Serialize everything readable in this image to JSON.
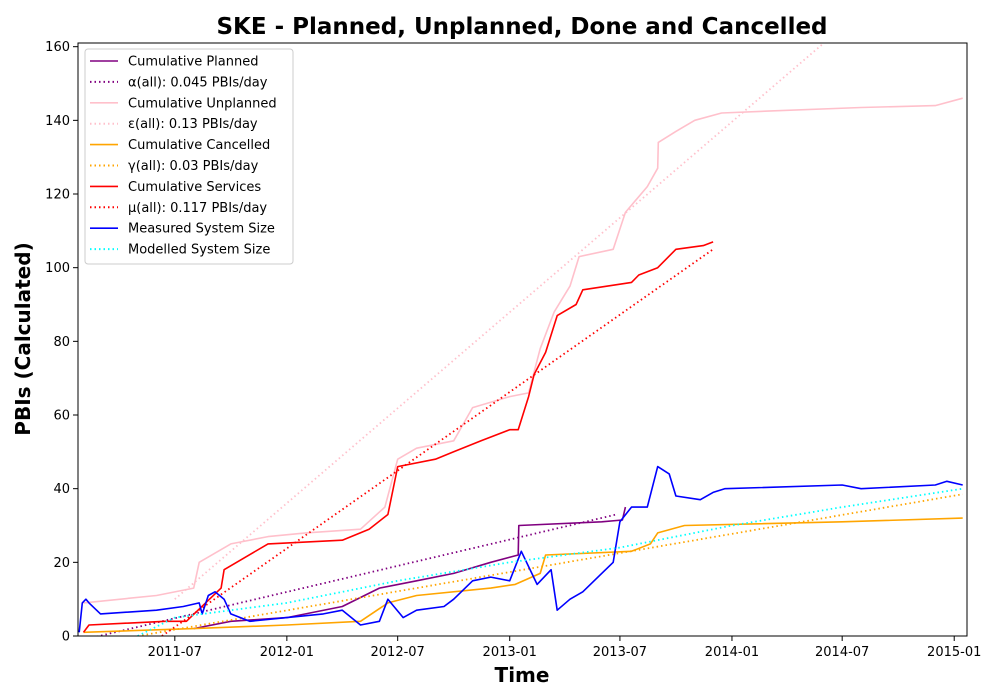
{
  "chart_data": {
    "type": "line",
    "title": "SKE - Planned, Unplanned, Done  and Cancelled",
    "xlabel": "Time",
    "ylabel": "PBIs (Calculated)",
    "x_axis": {
      "type": "date",
      "range": [
        "2011-01-23",
        "2015-01-22"
      ],
      "ticks": [
        "2011-07",
        "2012-01",
        "2012-07",
        "2013-01",
        "2013-07",
        "2014-01",
        "2014-07",
        "2015-01"
      ]
    },
    "y_axis": {
      "range": [
        0,
        161
      ],
      "ticks": [
        0,
        20,
        40,
        60,
        80,
        100,
        120,
        140,
        160
      ]
    },
    "grid": false,
    "legend_position": "top-left",
    "series": [
      {
        "name": "Cumulative Planned",
        "color": "#800080",
        "style": "solid",
        "points": [
          [
            "2011-08-01",
            2
          ],
          [
            "2011-10-01",
            4
          ],
          [
            "2012-01-01",
            5
          ],
          [
            "2012-04-01",
            8
          ],
          [
            "2012-06-01",
            13
          ],
          [
            "2012-08-01",
            15
          ],
          [
            "2012-10-01",
            17
          ],
          [
            "2012-12-01",
            20
          ],
          [
            "2013-01-15",
            22
          ],
          [
            "2013-01-16",
            30
          ],
          [
            "2013-06-01",
            31
          ],
          [
            "2013-07-05",
            31.5
          ],
          [
            "2013-07-10",
            35
          ]
        ]
      },
      {
        "name": "α(all): 0.045 PBIs/day",
        "color": "#800080",
        "style": "dotted",
        "points": [
          [
            "2011-02-01",
            -1
          ],
          [
            "2013-06-25",
            33
          ]
        ]
      },
      {
        "name": "Cumulative Unplanned",
        "color": "#ffc0cb",
        "style": "solid",
        "points": [
          [
            "2011-02-01",
            9
          ],
          [
            "2011-06-01",
            11
          ],
          [
            "2011-08-01",
            13
          ],
          [
            "2011-08-10",
            20
          ],
          [
            "2011-10-01",
            25
          ],
          [
            "2011-12-01",
            27
          ],
          [
            "2012-02-01",
            28
          ],
          [
            "2012-05-01",
            29
          ],
          [
            "2012-06-10",
            35
          ],
          [
            "2012-07-01",
            48
          ],
          [
            "2012-08-01",
            51
          ],
          [
            "2012-10-01",
            53
          ],
          [
            "2012-11-01",
            62
          ],
          [
            "2013-01-01",
            65
          ],
          [
            "2013-02-01",
            66
          ],
          [
            "2013-02-20",
            78
          ],
          [
            "2013-03-15",
            88
          ],
          [
            "2013-04-10",
            95
          ],
          [
            "2013-04-25",
            103
          ],
          [
            "2013-06-20",
            105
          ],
          [
            "2013-07-10",
            115
          ],
          [
            "2013-08-15",
            122
          ],
          [
            "2013-09-01",
            127
          ],
          [
            "2013-09-02",
            134
          ],
          [
            "2013-10-01",
            137
          ],
          [
            "2013-11-01",
            140
          ],
          [
            "2013-12-15",
            142
          ],
          [
            "2014-03-01",
            142.5
          ],
          [
            "2014-08-01",
            143.5
          ],
          [
            "2014-12-01",
            144
          ],
          [
            "2015-01-15",
            146
          ]
        ]
      },
      {
        "name": "ε(all): 0.13 PBIs/day",
        "color": "#ffc0cb",
        "style": "dotted",
        "points": [
          [
            "2011-07-01",
            10
          ],
          [
            "2014-06-01",
            161
          ]
        ]
      },
      {
        "name": "Cumulative Cancelled",
        "color": "#ffa500",
        "style": "solid",
        "points": [
          [
            "2011-02-01",
            1
          ],
          [
            "2011-08-01",
            2
          ],
          [
            "2012-01-01",
            3
          ],
          [
            "2012-05-01",
            4
          ],
          [
            "2012-06-15",
            9
          ],
          [
            "2012-08-01",
            11
          ],
          [
            "2012-12-01",
            13
          ],
          [
            "2013-01-10",
            14
          ],
          [
            "2013-02-20",
            17
          ],
          [
            "2013-03-01",
            22
          ],
          [
            "2013-07-20",
            23
          ],
          [
            "2013-08-20",
            25
          ],
          [
            "2013-09-01",
            28
          ],
          [
            "2013-10-15",
            30
          ],
          [
            "2014-07-01",
            31
          ],
          [
            "2015-01-15",
            32
          ]
        ]
      },
      {
        "name": "γ(all): 0.03 PBIs/day",
        "color": "#ffa500",
        "style": "dotted",
        "points": [
          [
            "2011-05-01",
            0
          ],
          [
            "2015-01-15",
            38.5
          ]
        ]
      },
      {
        "name": "Cumulative Services",
        "color": "#ff0000",
        "style": "solid",
        "points": [
          [
            "2011-02-01",
            1
          ],
          [
            "2011-02-10",
            3
          ],
          [
            "2011-06-15",
            4
          ],
          [
            "2011-07-20",
            4
          ],
          [
            "2011-09-15",
            13
          ],
          [
            "2011-09-20",
            18
          ],
          [
            "2011-12-01",
            25
          ],
          [
            "2012-04-01",
            26
          ],
          [
            "2012-05-15",
            29
          ],
          [
            "2012-06-15",
            33
          ],
          [
            "2012-07-01",
            46
          ],
          [
            "2012-09-01",
            48
          ],
          [
            "2012-10-01",
            50
          ],
          [
            "2012-11-15",
            53
          ],
          [
            "2013-01-01",
            56
          ],
          [
            "2013-01-15",
            56
          ],
          [
            "2013-02-01",
            65
          ],
          [
            "2013-02-10",
            71
          ],
          [
            "2013-03-01",
            77
          ],
          [
            "2013-03-20",
            87
          ],
          [
            "2013-04-20",
            90
          ],
          [
            "2013-05-01",
            94
          ],
          [
            "2013-07-20",
            96
          ],
          [
            "2013-08-01",
            98
          ],
          [
            "2013-09-01",
            100
          ],
          [
            "2013-10-01",
            105
          ],
          [
            "2013-11-15",
            106
          ],
          [
            "2013-12-01",
            107
          ]
        ]
      },
      {
        "name": "μ(all): 0.117 PBIs/day",
        "color": "#ff0000",
        "style": "dotted",
        "points": [
          [
            "2011-06-10",
            0
          ],
          [
            "2013-12-01",
            105
          ]
        ]
      },
      {
        "name": "Measured System Size",
        "color": "#0000ff",
        "style": "solid",
        "points": [
          [
            "2011-01-25",
            1
          ],
          [
            "2011-01-30",
            9
          ],
          [
            "2011-02-05",
            10
          ],
          [
            "2011-02-10",
            9
          ],
          [
            "2011-03-01",
            6
          ],
          [
            "2011-06-01",
            7
          ],
          [
            "2011-07-15",
            8
          ],
          [
            "2011-08-10",
            9
          ],
          [
            "2011-08-15",
            6
          ],
          [
            "2011-08-25",
            11
          ],
          [
            "2011-09-05",
            12
          ],
          [
            "2011-09-20",
            10
          ],
          [
            "2011-10-01",
            6
          ],
          [
            "2011-11-01",
            4
          ],
          [
            "2012-01-01",
            5
          ],
          [
            "2012-03-01",
            6
          ],
          [
            "2012-04-01",
            7
          ],
          [
            "2012-05-01",
            3
          ],
          [
            "2012-06-01",
            4
          ],
          [
            "2012-06-15",
            10
          ],
          [
            "2012-07-10",
            5
          ],
          [
            "2012-08-01",
            7
          ],
          [
            "2012-09-15",
            8
          ],
          [
            "2012-10-01",
            10
          ],
          [
            "2012-11-01",
            15
          ],
          [
            "2012-12-01",
            16
          ],
          [
            "2013-01-01",
            15
          ],
          [
            "2013-01-20",
            23
          ],
          [
            "2013-02-15",
            14
          ],
          [
            "2013-03-10",
            18
          ],
          [
            "2013-03-20",
            7
          ],
          [
            "2013-04-10",
            10
          ],
          [
            "2013-05-01",
            12
          ],
          [
            "2013-06-01",
            17
          ],
          [
            "2013-06-20",
            20
          ],
          [
            "2013-07-01",
            31
          ],
          [
            "2013-07-20",
            35
          ],
          [
            "2013-08-15",
            35
          ],
          [
            "2013-09-01",
            46
          ],
          [
            "2013-09-20",
            44
          ],
          [
            "2013-10-01",
            38
          ],
          [
            "2013-11-10",
            37
          ],
          [
            "2013-12-01",
            39
          ],
          [
            "2013-12-20",
            40
          ],
          [
            "2014-07-01",
            41
          ],
          [
            "2014-08-01",
            40
          ],
          [
            "2014-12-01",
            41
          ],
          [
            "2014-12-20",
            42
          ],
          [
            "2015-01-15",
            41
          ]
        ]
      },
      {
        "name": "Modelled System Size",
        "color": "#00ffff",
        "style": "dotted",
        "points": [
          [
            "2011-05-01",
            0
          ],
          [
            "2011-07-01",
            5
          ],
          [
            "2012-01-01",
            9
          ],
          [
            "2012-07-01",
            15
          ],
          [
            "2013-01-01",
            20
          ],
          [
            "2013-07-01",
            24
          ],
          [
            "2014-01-01",
            30
          ],
          [
            "2014-07-01",
            35
          ],
          [
            "2015-01-15",
            40
          ]
        ]
      }
    ]
  }
}
